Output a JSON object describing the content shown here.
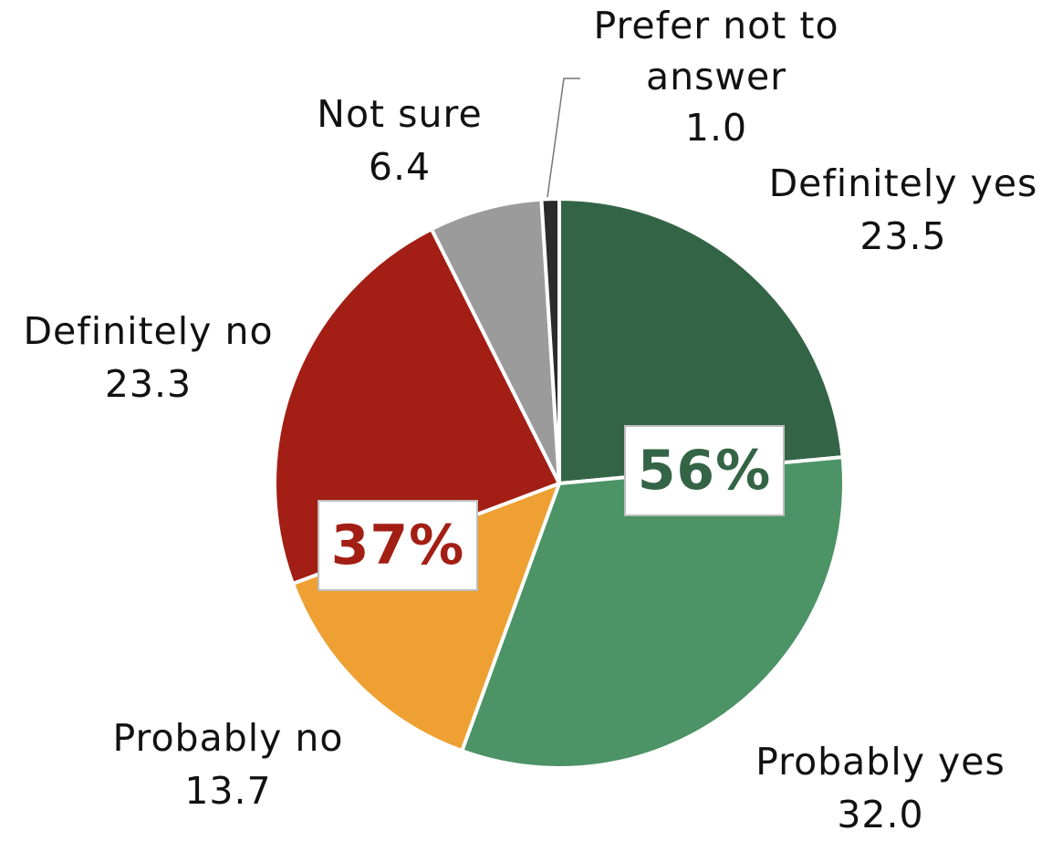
{
  "chart_data": {
    "type": "pie",
    "slices": [
      {
        "label": "Definitely yes",
        "value": 23.5,
        "color": "#346446"
      },
      {
        "label": "Probably yes",
        "value": 32.0,
        "color": "#4c9366"
      },
      {
        "label": "Probably no",
        "value": 13.7,
        "color": "#eea033"
      },
      {
        "label": "Definitely no",
        "value": 23.3,
        "color": "#a31e14"
      },
      {
        "label": "Not sure",
        "value": 6.4,
        "color": "#9b9b9b"
      },
      {
        "label": "Prefer not to answer",
        "value": 1.0,
        "color": "#2b2b2b"
      }
    ],
    "annotations": {
      "yes_total": {
        "text": "56%",
        "color": "#346446"
      },
      "no_total": {
        "text": "37%",
        "color": "#a31e14"
      }
    }
  }
}
